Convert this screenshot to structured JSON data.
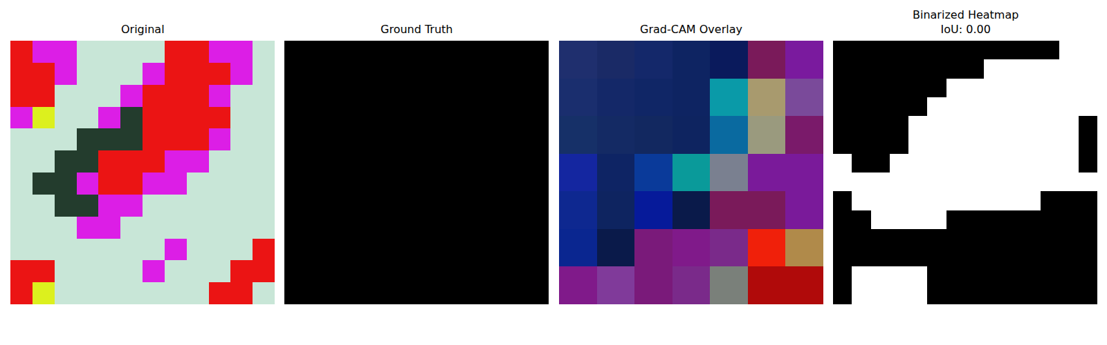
{
  "chart_data": [
    {
      "type": "image",
      "title": "Original",
      "tick_labels": false,
      "cells": [
        [
          [
            235,
            20,
            20
          ],
          [
            220,
            30,
            230
          ],
          [
            220,
            30,
            230
          ],
          [
            200,
            230,
            215
          ],
          [
            200,
            230,
            215
          ],
          [
            200,
            230,
            215
          ],
          [
            200,
            230,
            215
          ],
          [
            235,
            20,
            20
          ],
          [
            235,
            20,
            20
          ],
          [
            220,
            30,
            230
          ],
          [
            220,
            30,
            230
          ],
          [
            200,
            230,
            215
          ]
        ],
        [
          [
            235,
            20,
            20
          ],
          [
            235,
            20,
            20
          ],
          [
            220,
            30,
            230
          ],
          [
            200,
            230,
            215
          ],
          [
            200,
            230,
            215
          ],
          [
            200,
            230,
            215
          ],
          [
            220,
            30,
            230
          ],
          [
            235,
            20,
            20
          ],
          [
            235,
            20,
            20
          ],
          [
            235,
            20,
            20
          ],
          [
            220,
            30,
            230
          ],
          [
            200,
            230,
            215
          ]
        ],
        [
          [
            235,
            20,
            20
          ],
          [
            235,
            20,
            20
          ],
          [
            200,
            230,
            215
          ],
          [
            200,
            230,
            215
          ],
          [
            200,
            230,
            215
          ],
          [
            220,
            30,
            230
          ],
          [
            235,
            20,
            20
          ],
          [
            235,
            20,
            20
          ],
          [
            235,
            20,
            20
          ],
          [
            220,
            30,
            230
          ],
          [
            200,
            230,
            215
          ],
          [
            200,
            230,
            215
          ]
        ],
        [
          [
            220,
            30,
            230
          ],
          [
            220,
            240,
            30
          ],
          [
            200,
            230,
            215
          ],
          [
            200,
            230,
            215
          ],
          [
            220,
            30,
            230
          ],
          [
            35,
            60,
            45
          ],
          [
            235,
            20,
            20
          ],
          [
            235,
            20,
            20
          ],
          [
            235,
            20,
            20
          ],
          [
            235,
            20,
            20
          ],
          [
            200,
            230,
            215
          ],
          [
            200,
            230,
            215
          ]
        ],
        [
          [
            200,
            230,
            215
          ],
          [
            200,
            230,
            215
          ],
          [
            200,
            230,
            215
          ],
          [
            35,
            60,
            45
          ],
          [
            35,
            60,
            45
          ],
          [
            35,
            60,
            45
          ],
          [
            235,
            20,
            20
          ],
          [
            235,
            20,
            20
          ],
          [
            235,
            20,
            20
          ],
          [
            220,
            30,
            230
          ],
          [
            200,
            230,
            215
          ],
          [
            200,
            230,
            215
          ]
        ],
        [
          [
            200,
            230,
            215
          ],
          [
            200,
            230,
            215
          ],
          [
            35,
            60,
            45
          ],
          [
            35,
            60,
            45
          ],
          [
            235,
            20,
            20
          ],
          [
            235,
            20,
            20
          ],
          [
            235,
            20,
            20
          ],
          [
            220,
            30,
            230
          ],
          [
            220,
            30,
            230
          ],
          [
            200,
            230,
            215
          ],
          [
            200,
            230,
            215
          ],
          [
            200,
            230,
            215
          ]
        ],
        [
          [
            200,
            230,
            215
          ],
          [
            35,
            60,
            45
          ],
          [
            35,
            60,
            45
          ],
          [
            220,
            30,
            230
          ],
          [
            235,
            20,
            20
          ],
          [
            235,
            20,
            20
          ],
          [
            220,
            30,
            230
          ],
          [
            220,
            30,
            230
          ],
          [
            200,
            230,
            215
          ],
          [
            200,
            230,
            215
          ],
          [
            200,
            230,
            215
          ],
          [
            200,
            230,
            215
          ]
        ],
        [
          [
            200,
            230,
            215
          ],
          [
            200,
            230,
            215
          ],
          [
            35,
            60,
            45
          ],
          [
            35,
            60,
            45
          ],
          [
            220,
            30,
            230
          ],
          [
            220,
            30,
            230
          ],
          [
            200,
            230,
            215
          ],
          [
            200,
            230,
            215
          ],
          [
            200,
            230,
            215
          ],
          [
            200,
            230,
            215
          ],
          [
            200,
            230,
            215
          ],
          [
            200,
            230,
            215
          ]
        ],
        [
          [
            200,
            230,
            215
          ],
          [
            200,
            230,
            215
          ],
          [
            200,
            230,
            215
          ],
          [
            220,
            30,
            230
          ],
          [
            220,
            30,
            230
          ],
          [
            200,
            230,
            215
          ],
          [
            200,
            230,
            215
          ],
          [
            200,
            230,
            215
          ],
          [
            200,
            230,
            215
          ],
          [
            200,
            230,
            215
          ],
          [
            200,
            230,
            215
          ],
          [
            200,
            230,
            215
          ]
        ],
        [
          [
            200,
            230,
            215
          ],
          [
            200,
            230,
            215
          ],
          [
            200,
            230,
            215
          ],
          [
            200,
            230,
            215
          ],
          [
            200,
            230,
            215
          ],
          [
            200,
            230,
            215
          ],
          [
            200,
            230,
            215
          ],
          [
            220,
            30,
            230
          ],
          [
            200,
            230,
            215
          ],
          [
            200,
            230,
            215
          ],
          [
            200,
            230,
            215
          ],
          [
            235,
            20,
            20
          ]
        ],
        [
          [
            235,
            20,
            20
          ],
          [
            235,
            20,
            20
          ],
          [
            200,
            230,
            215
          ],
          [
            200,
            230,
            215
          ],
          [
            200,
            230,
            215
          ],
          [
            200,
            230,
            215
          ],
          [
            220,
            30,
            230
          ],
          [
            200,
            230,
            215
          ],
          [
            200,
            230,
            215
          ],
          [
            200,
            230,
            215
          ],
          [
            235,
            20,
            20
          ],
          [
            235,
            20,
            20
          ]
        ],
        [
          [
            235,
            20,
            20
          ],
          [
            220,
            240,
            30
          ],
          [
            200,
            230,
            215
          ],
          [
            200,
            230,
            215
          ],
          [
            200,
            230,
            215
          ],
          [
            200,
            230,
            215
          ],
          [
            200,
            230,
            215
          ],
          [
            200,
            230,
            215
          ],
          [
            200,
            230,
            215
          ],
          [
            235,
            20,
            20
          ],
          [
            235,
            20,
            20
          ],
          [
            200,
            230,
            215
          ]
        ]
      ]
    },
    {
      "type": "heatmap",
      "title": "Ground Truth",
      "tick_labels": false,
      "zlim": [
        0,
        1
      ],
      "cells": [
        [
          0
        ]
      ]
    },
    {
      "type": "image",
      "title": "Grad-CAM Overlay",
      "tick_labels": false,
      "cells": [
        [
          [
            31,
            47,
            110
          ],
          [
            26,
            42,
            102
          ],
          [
            20,
            40,
            106
          ],
          [
            14,
            36,
            98
          ],
          [
            10,
            26,
            92
          ],
          [
            122,
            26,
            90
          ],
          [
            122,
            26,
            158
          ]
        ],
        [
          [
            26,
            46,
            110
          ],
          [
            20,
            40,
            104
          ],
          [
            16,
            38,
            102
          ],
          [
            14,
            36,
            98
          ],
          [
            10,
            154,
            168
          ],
          [
            168,
            154,
            110
          ],
          [
            122,
            74,
            154
          ]
        ],
        [
          [
            22,
            48,
            104
          ],
          [
            20,
            42,
            100
          ],
          [
            18,
            40,
            96
          ],
          [
            14,
            36,
            96
          ],
          [
            10,
            106,
            160
          ],
          [
            154,
            154,
            126
          ],
          [
            122,
            26,
            106
          ]
        ],
        [
          [
            20,
            38,
            160
          ],
          [
            14,
            36,
            100
          ],
          [
            10,
            58,
            154
          ],
          [
            10,
            154,
            154
          ],
          [
            122,
            128,
            144
          ],
          [
            122,
            26,
            154
          ],
          [
            122,
            26,
            154
          ]
        ],
        [
          [
            14,
            40,
            144
          ],
          [
            14,
            36,
            96
          ],
          [
            6,
            26,
            154
          ],
          [
            10,
            26,
            74
          ],
          [
            122,
            26,
            90
          ],
          [
            122,
            26,
            90
          ],
          [
            122,
            26,
            154
          ]
        ],
        [
          [
            10,
            38,
            144
          ],
          [
            10,
            26,
            74
          ],
          [
            122,
            26,
            122
          ],
          [
            128,
            26,
            138
          ],
          [
            122,
            42,
            138
          ],
          [
            240,
            32,
            10
          ],
          [
            176,
            138,
            74
          ]
        ],
        [
          [
            128,
            26,
            138
          ],
          [
            128,
            58,
            154
          ],
          [
            122,
            26,
            122
          ],
          [
            122,
            42,
            138
          ],
          [
            122,
            128,
            122
          ],
          [
            176,
            10,
            10
          ],
          [
            176,
            10,
            10
          ]
        ]
      ]
    },
    {
      "type": "heatmap",
      "title": "Binarized Heatmap\nIoU: 0.00",
      "tick_labels": false,
      "zlim": [
        0,
        1
      ],
      "cells": [
        [
          0,
          0,
          0,
          0,
          0,
          0,
          0,
          0,
          0,
          0,
          0,
          0,
          1,
          1
        ],
        [
          0,
          0,
          0,
          0,
          0,
          0,
          0,
          0,
          1,
          1,
          1,
          1,
          1,
          1
        ],
        [
          0,
          0,
          0,
          0,
          0,
          0,
          1,
          1,
          1,
          1,
          1,
          1,
          1,
          1
        ],
        [
          0,
          0,
          0,
          0,
          0,
          1,
          1,
          1,
          1,
          1,
          1,
          1,
          1,
          1
        ],
        [
          0,
          0,
          0,
          0,
          1,
          1,
          1,
          1,
          1,
          1,
          1,
          1,
          1,
          0
        ],
        [
          0,
          0,
          0,
          0,
          1,
          1,
          1,
          1,
          1,
          1,
          1,
          1,
          1,
          0
        ],
        [
          1,
          0,
          0,
          1,
          1,
          1,
          1,
          1,
          1,
          1,
          1,
          1,
          1,
          0
        ],
        [
          1,
          1,
          1,
          1,
          1,
          1,
          1,
          1,
          1,
          1,
          1,
          1,
          1,
          1
        ],
        [
          0,
          1,
          1,
          1,
          1,
          1,
          1,
          1,
          1,
          1,
          1,
          0,
          0,
          0
        ],
        [
          0,
          0,
          1,
          1,
          1,
          1,
          0,
          0,
          0,
          0,
          0,
          0,
          0,
          0
        ],
        [
          0,
          0,
          0,
          0,
          0,
          0,
          0,
          0,
          0,
          0,
          0,
          0,
          0,
          0
        ],
        [
          0,
          0,
          0,
          0,
          0,
          0,
          0,
          0,
          0,
          0,
          0,
          0,
          0,
          0
        ],
        [
          0,
          1,
          1,
          1,
          1,
          0,
          0,
          0,
          0,
          0,
          0,
          0,
          0,
          0
        ],
        [
          0,
          1,
          1,
          1,
          1,
          0,
          0,
          0,
          0,
          0,
          0,
          0,
          0,
          0
        ]
      ]
    }
  ]
}
